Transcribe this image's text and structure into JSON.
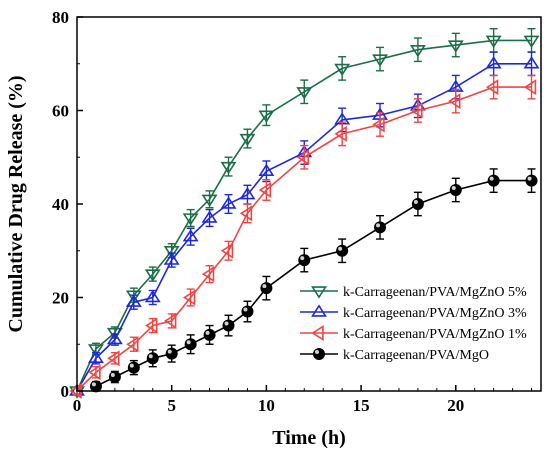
{
  "chart_data": {
    "type": "line",
    "xlabel": "Time (h)",
    "ylabel": "Cumulative Drug Release (%)",
    "xlim": [
      0,
      24.5
    ],
    "ylim": [
      0,
      80
    ],
    "x_ticks": [
      "0",
      "5",
      "10",
      "15",
      "20"
    ],
    "y_ticks": [
      "0",
      "20",
      "40",
      "60",
      "80"
    ],
    "grid": false,
    "legend_position": "bottom-right",
    "series": [
      {
        "name": "k-Carrageenan/PVA/MgZnO 5%",
        "color": "#1b6e47",
        "marker": "triangle-down",
        "x": [
          0,
          1,
          2,
          3,
          4,
          5,
          6,
          7,
          8,
          9,
          10,
          12,
          14,
          16,
          18,
          20,
          22,
          24
        ],
        "y": [
          0,
          9,
          12.5,
          20.5,
          25,
          30,
          37,
          41,
          48,
          54,
          59,
          64,
          69,
          71,
          73,
          74,
          75,
          75
        ],
        "err": [
          0.8,
          1.2,
          1.2,
          1.5,
          1.5,
          1.5,
          1.8,
          1.8,
          2,
          2,
          2.2,
          2.5,
          2.5,
          2.5,
          2.5,
          2.5,
          2.5,
          2.5
        ]
      },
      {
        "name": "k-Carrageenan/PVA/MgZnO 3%",
        "color": "#1f2ad6",
        "marker": "triangle-up",
        "x": [
          0,
          1,
          2,
          3,
          4,
          5,
          6,
          7,
          8,
          9,
          10,
          12,
          14,
          16,
          18,
          20,
          22,
          24
        ],
        "y": [
          0,
          7,
          11,
          19,
          20,
          28,
          33,
          37,
          40,
          42,
          47,
          51,
          58,
          59,
          61,
          65,
          70,
          70
        ],
        "err": [
          0.8,
          1.2,
          1.2,
          1.5,
          1.5,
          1.5,
          1.8,
          1.8,
          2,
          2,
          2.2,
          2.5,
          2.5,
          2.5,
          2.5,
          2.5,
          2.5,
          2.5
        ]
      },
      {
        "name": "k-Carrageenan/PVA/MgZnO 1%",
        "color": "#f04545",
        "marker": "triangle-left",
        "x": [
          0,
          1,
          2,
          3,
          4,
          5,
          6,
          7,
          8,
          9,
          10,
          12,
          14,
          16,
          18,
          20,
          22,
          24
        ],
        "y": [
          0,
          4,
          7,
          10,
          14,
          15,
          20,
          25,
          30,
          38,
          43,
          50,
          55,
          57,
          60,
          62,
          65,
          65
        ],
        "err": [
          0.8,
          1.2,
          1.2,
          1.5,
          1.5,
          1.5,
          1.8,
          1.8,
          2,
          2,
          2.2,
          2.5,
          2.5,
          2.5,
          2.5,
          2.5,
          2.5,
          2.5
        ]
      },
      {
        "name": "k-Carrageenan/PVA/MgO",
        "color": "#000000",
        "marker": "circle",
        "x": [
          1,
          2,
          3,
          4,
          5,
          6,
          7,
          8,
          9,
          10,
          12,
          14,
          16,
          18,
          20,
          22,
          24
        ],
        "y": [
          1,
          3,
          5,
          7,
          8,
          10,
          12,
          14,
          17,
          22,
          28,
          30,
          35,
          40,
          43,
          45,
          45
        ],
        "err": [
          1,
          1.2,
          1.5,
          1.8,
          1.8,
          2,
          2,
          2.2,
          2.2,
          2.5,
          2.5,
          2.5,
          2.5,
          2.5,
          2.5,
          2.5,
          2.5
        ]
      }
    ]
  }
}
